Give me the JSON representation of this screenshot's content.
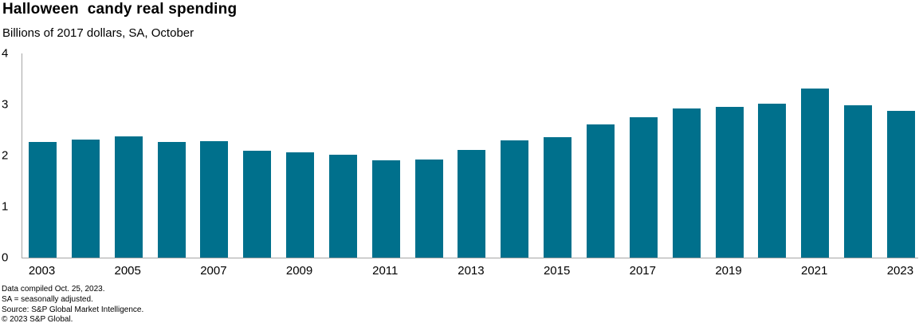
{
  "header": {
    "title": "Halloween  candy real spending",
    "subtitle": "Billions of 2017 dollars, SA, October"
  },
  "chart_data": {
    "type": "bar",
    "title": "Halloween  candy real spending",
    "subtitle": "Billions of 2017 dollars, SA, October",
    "categories": [
      2003,
      2004,
      2005,
      2006,
      2007,
      2008,
      2009,
      2010,
      2011,
      2012,
      2013,
      2014,
      2015,
      2016,
      2017,
      2018,
      2019,
      2020,
      2021,
      2022,
      2023
    ],
    "values": [
      2.26,
      2.32,
      2.37,
      2.27,
      2.28,
      2.09,
      2.06,
      2.01,
      1.9,
      1.93,
      2.11,
      2.3,
      2.36,
      2.61,
      2.75,
      2.92,
      2.95,
      3.01,
      3.32,
      2.99,
      2.87
    ],
    "xlabel": "",
    "ylabel": "",
    "ylim": [
      0,
      4
    ],
    "y_ticks": [
      0,
      1,
      2,
      3,
      4
    ],
    "x_tick_labels": [
      "2003",
      "2005",
      "2007",
      "2009",
      "2011",
      "2013",
      "2015",
      "2017",
      "2019",
      "2021",
      "2023"
    ],
    "grid": false,
    "legend": false,
    "bar_color": "#00708C",
    "axis_color": "#A6A6A6",
    "text_color": "#000000"
  },
  "footnotes": [
    "Data compiled Oct. 25, 2023.",
    "SA = seasonally adjusted.",
    "Source: S&P Global Market Intelligence.",
    "© 2023 S&P Global."
  ]
}
